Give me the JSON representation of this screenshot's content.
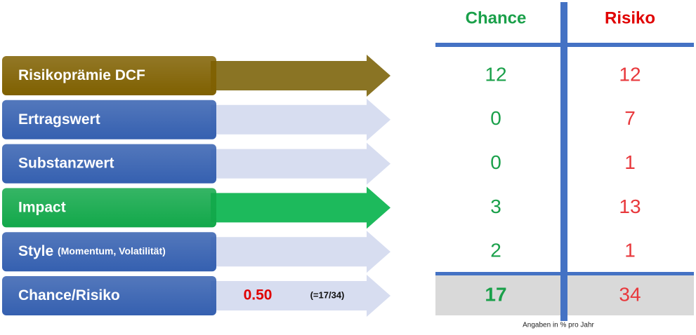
{
  "header": {
    "chance": "Chance",
    "risiko": "Risiko"
  },
  "rows": [
    {
      "label": "Risikoprämie DCF",
      "chance": 12,
      "risiko": 12,
      "box_color": "#7f6000",
      "arrow_color": "#8a7424"
    },
    {
      "label": "Ertragswert",
      "chance": 0,
      "risiko": 7,
      "box_color": "#3560b0",
      "arrow_color": "#d7ddf0"
    },
    {
      "label": "Substanzwert",
      "chance": 0,
      "risiko": 1,
      "box_color": "#3560b0",
      "arrow_color": "#d7ddf0"
    },
    {
      "label": "Impact",
      "chance": 3,
      "risiko": 13,
      "box_color": "#12a84a",
      "arrow_color": "#1dba5c"
    },
    {
      "label": "Style",
      "sublabel": "(Momentum, Volatilität)",
      "chance": 2,
      "risiko": 1,
      "box_color": "#3560b0",
      "arrow_color": "#d7ddf0"
    }
  ],
  "total": {
    "label": "Chance/Risiko",
    "ratio": "0.50",
    "formula": "(=17/34)",
    "chance": 17,
    "risiko": 34,
    "box_color": "#3560b0",
    "arrow_color": "#d7ddf0"
  },
  "note": "Angaben in % pro Jahr",
  "chance_color": "#1aa04a",
  "risiko_color": "#e8383c"
}
